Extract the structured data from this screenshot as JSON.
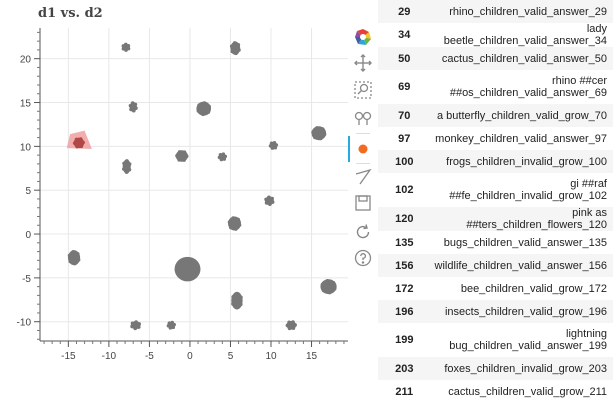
{
  "chart_data": {
    "type": "scatter",
    "title": "d1 vs. d2",
    "xlabel": "",
    "ylabel": "",
    "xlim": [
      -18.5,
      19.5
    ],
    "ylim": [
      -12.2,
      23.5
    ],
    "x_ticks": [
      -15,
      -10,
      -5,
      0,
      5,
      10,
      15
    ],
    "y_ticks": [
      -10,
      -5,
      0,
      5,
      10,
      15,
      20
    ],
    "point_color": "#777777",
    "selected_color": "#d62728",
    "selection_fill": "#f0a0a0",
    "clusters": [
      {
        "x": -7.9,
        "y": 21.3,
        "w": 0.9,
        "h": 0.8
      },
      {
        "x": 5.6,
        "y": 21.2,
        "w": 1.2,
        "h": 1.5
      },
      {
        "x": -7.0,
        "y": 14.5,
        "w": 0.9,
        "h": 1.1
      },
      {
        "x": 1.7,
        "y": 14.3,
        "w": 1.8,
        "h": 1.6
      },
      {
        "x": 15.9,
        "y": 11.5,
        "w": 1.8,
        "h": 1.6
      },
      {
        "x": -13.7,
        "y": 10.4,
        "w": 1.3,
        "h": 1.2,
        "selected": true
      },
      {
        "x": 10.3,
        "y": 10.1,
        "w": 0.9,
        "h": 0.8
      },
      {
        "x": -1.0,
        "y": 8.9,
        "w": 1.5,
        "h": 1.3
      },
      {
        "x": 4.0,
        "y": 8.8,
        "w": 0.9,
        "h": 0.8
      },
      {
        "x": -7.8,
        "y": 7.7,
        "w": 1.0,
        "h": 1.6
      },
      {
        "x": 9.8,
        "y": 3.8,
        "w": 1.1,
        "h": 1.0
      },
      {
        "x": 5.5,
        "y": 1.2,
        "w": 1.6,
        "h": 1.6
      },
      {
        "x": -14.3,
        "y": -2.7,
        "w": 1.5,
        "h": 1.7
      },
      {
        "x": -0.3,
        "y": -4.0,
        "w": 3.2,
        "h": 2.8
      },
      {
        "x": 17.1,
        "y": -6.0,
        "w": 2.0,
        "h": 1.7
      },
      {
        "x": 5.8,
        "y": -7.6,
        "w": 1.4,
        "h": 2.0
      },
      {
        "x": -6.7,
        "y": -10.4,
        "w": 1.2,
        "h": 0.9
      },
      {
        "x": -2.3,
        "y": -10.4,
        "w": 0.9,
        "h": 0.8
      },
      {
        "x": 12.5,
        "y": -10.4,
        "w": 1.2,
        "h": 1.0
      }
    ],
    "selection_region": [
      [
        -15.2,
        9.8
      ],
      [
        -14.8,
        11.4
      ],
      [
        -13.0,
        11.8
      ],
      [
        -12.1,
        9.7
      ]
    ]
  },
  "toolbar": {
    "tools": [
      {
        "name": "bokeh-logo-icon",
        "active": false
      },
      {
        "name": "pan-icon",
        "active": false
      },
      {
        "name": "box-zoom-icon",
        "active": false
      },
      {
        "name": "wheel-zoom-icon",
        "active": false
      },
      {
        "name": "lasso-select-icon",
        "active": true
      },
      {
        "name": "poly-select-icon",
        "active": false
      },
      {
        "name": "save-icon",
        "active": false
      },
      {
        "name": "reset-icon",
        "active": false
      },
      {
        "name": "help-icon",
        "active": false
      }
    ]
  },
  "table": {
    "rows": [
      {
        "index": "29",
        "label": "rhino_children_valid_answer_29"
      },
      {
        "index": "34",
        "label": "lady beetle_children_valid_answer_34"
      },
      {
        "index": "50",
        "label": "cactus_children_valid_answer_50"
      },
      {
        "index": "69",
        "label": "rhino ##cer\n##os_children_valid_answer_69"
      },
      {
        "index": "70",
        "label": "a butterfly_children_valid_grow_70"
      },
      {
        "index": "97",
        "label": "monkey_children_valid_answer_97"
      },
      {
        "index": "100",
        "label": "frogs_children_invalid_grow_100"
      },
      {
        "index": "102",
        "label": "gi ##raf\n##fe_children_invalid_grow_102"
      },
      {
        "index": "120",
        "label": "pink as ##ters_children_flowers_120"
      },
      {
        "index": "135",
        "label": "bugs_children_valid_answer_135"
      },
      {
        "index": "156",
        "label": "wildlife_children_valid_answer_156"
      },
      {
        "index": "172",
        "label": "bee_children_valid_grow_172"
      },
      {
        "index": "196",
        "label": "insects_children_valid_grow_196"
      },
      {
        "index": "199",
        "label": "lightning\nbug_children_valid_answer_199"
      },
      {
        "index": "203",
        "label": "foxes_children_invalid_grow_203"
      },
      {
        "index": "211",
        "label": "cactus_children_valid_grow_211"
      }
    ]
  }
}
